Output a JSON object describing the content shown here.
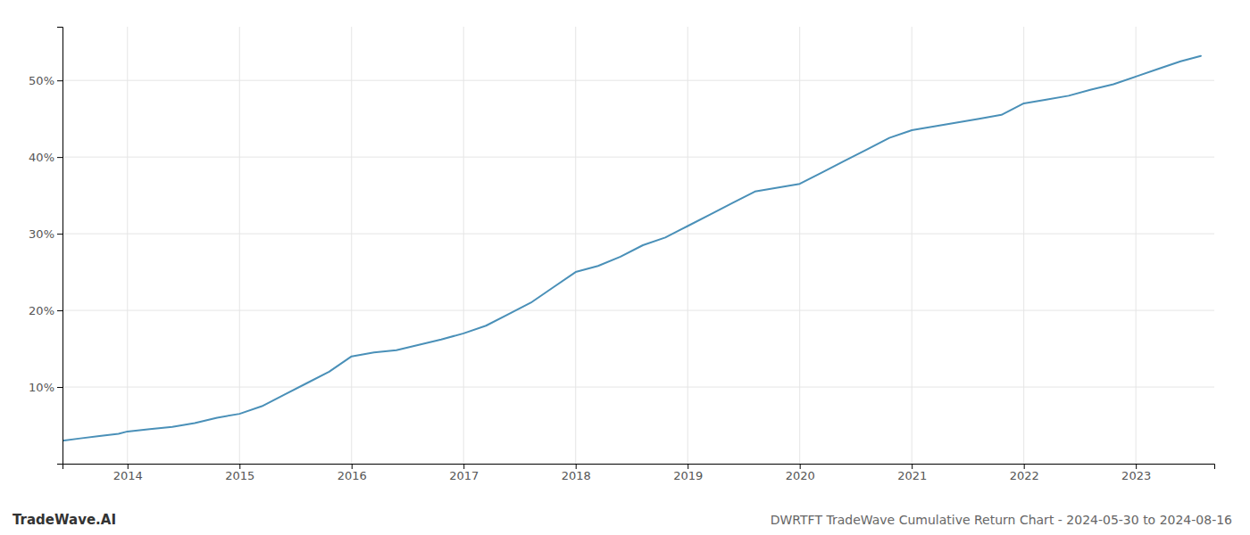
{
  "chart_data": {
    "type": "line",
    "title": "DWRTFT TradeWave Cumulative Return Chart - 2024-05-30 to 2024-08-16",
    "annotations": [
      "TradeWave.AI"
    ],
    "color": "#4a90b8",
    "grid": true,
    "x": [
      2013.42,
      2013.58,
      2013.75,
      2013.92,
      2014.0,
      2014.2,
      2014.4,
      2014.6,
      2014.8,
      2015.0,
      2015.2,
      2015.4,
      2015.6,
      2015.8,
      2016.0,
      2016.2,
      2016.4,
      2016.6,
      2016.8,
      2017.0,
      2017.2,
      2017.4,
      2017.6,
      2017.8,
      2018.0,
      2018.2,
      2018.4,
      2018.6,
      2018.8,
      2019.0,
      2019.2,
      2019.4,
      2019.6,
      2019.8,
      2020.0,
      2020.2,
      2020.4,
      2020.6,
      2020.8,
      2021.0,
      2021.2,
      2021.4,
      2021.6,
      2021.8,
      2022.0,
      2022.2,
      2022.4,
      2022.6,
      2022.8,
      2023.0,
      2023.2,
      2023.4,
      2023.58
    ],
    "values": [
      3.0,
      3.3,
      3.6,
      3.9,
      4.2,
      4.5,
      4.8,
      5.3,
      6.0,
      6.5,
      7.5,
      9.0,
      10.5,
      12.0,
      14.0,
      14.5,
      14.8,
      15.5,
      16.2,
      17.0,
      18.0,
      19.5,
      21.0,
      23.0,
      25.0,
      25.8,
      27.0,
      28.5,
      29.5,
      31.0,
      32.5,
      34.0,
      35.5,
      36.0,
      36.5,
      38.0,
      39.5,
      41.0,
      42.5,
      43.5,
      44.0,
      44.5,
      45.0,
      45.5,
      47.0,
      47.5,
      48.0,
      48.8,
      49.5,
      50.5,
      51.5,
      52.5,
      53.2
    ],
    "xlim": [
      2013.42,
      2023.7
    ],
    "xticks": [
      2014,
      2015,
      2016,
      2017,
      2018,
      2019,
      2020,
      2021,
      2022,
      2023
    ],
    "ylim": [
      0,
      57
    ],
    "yticks": [
      {
        "value": 10,
        "label": "10%"
      },
      {
        "value": 20,
        "label": "20%"
      },
      {
        "value": 30,
        "label": "30%"
      },
      {
        "value": 40,
        "label": "40%"
      },
      {
        "value": 50,
        "label": "50%"
      }
    ]
  }
}
